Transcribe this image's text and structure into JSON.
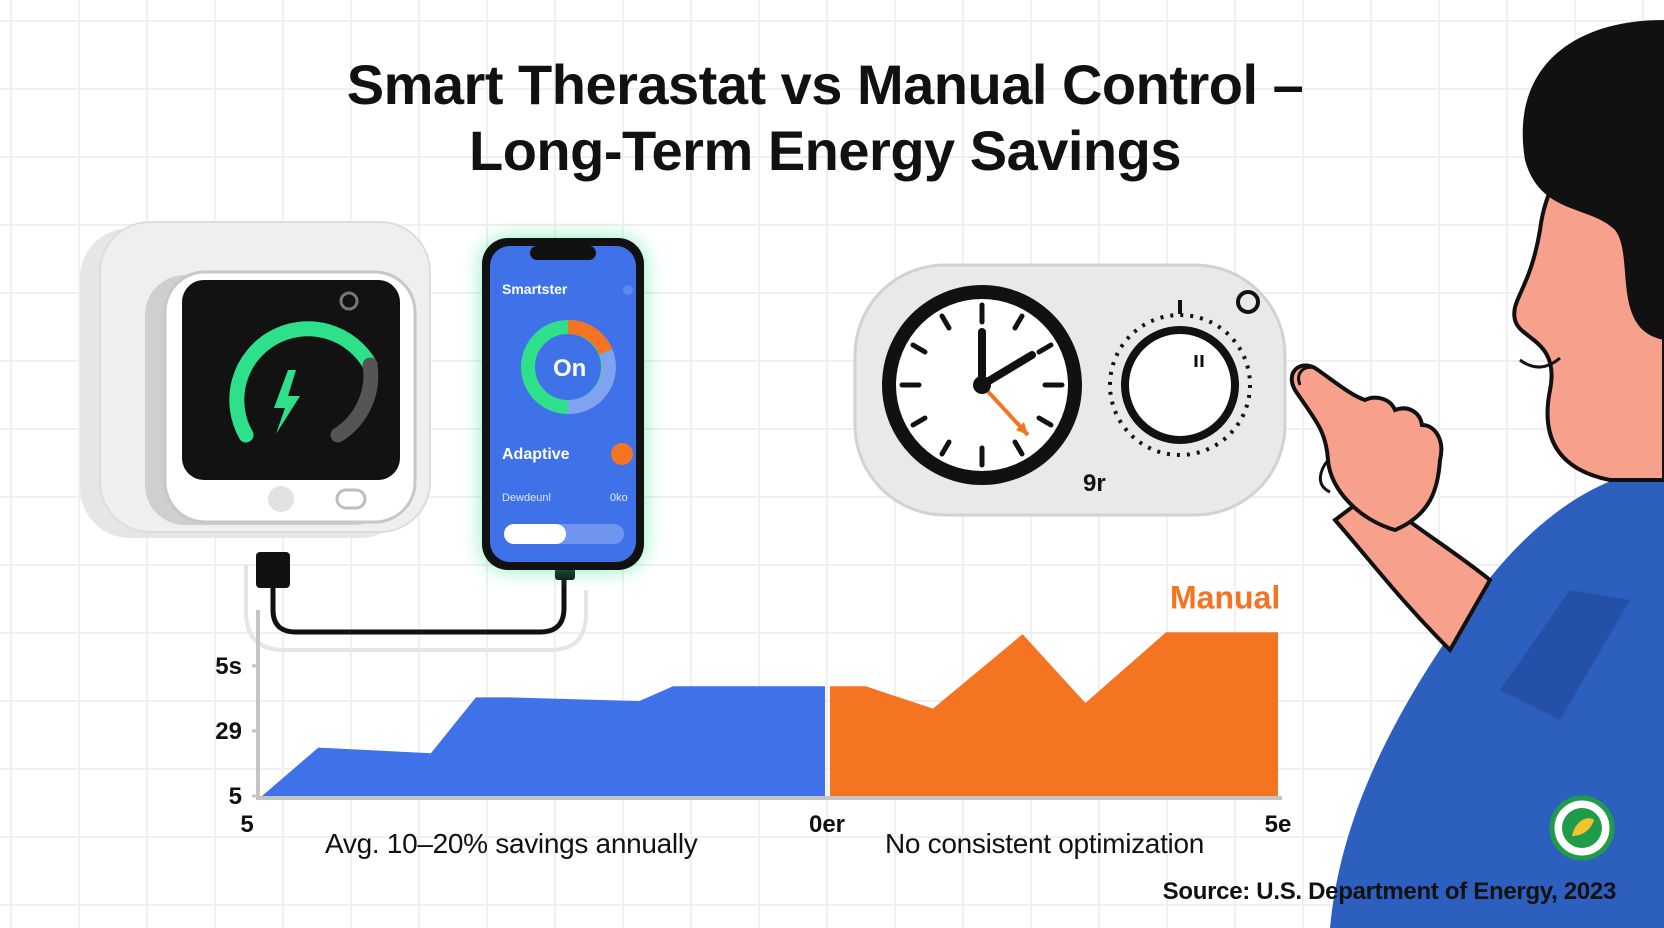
{
  "title": {
    "line1": "Smart Therastat vs Manual Control –",
    "line2": "Long-Term Energy Savings"
  },
  "smart_device": {
    "phone_app_name": "Smartster",
    "phone_status": "On",
    "phone_mode_label": "Adaptive",
    "phone_row_label": "Dewdeunl",
    "phone_row_value": "0ko"
  },
  "manual_device": {
    "dial_label": "9r"
  },
  "chart_data": {
    "type": "area",
    "title": "",
    "xlabel": "",
    "ylabel": "",
    "y_tick_labels": [
      "5",
      "29",
      "5s"
    ],
    "x_tick_labels": [
      "5",
      "0er",
      "5e"
    ],
    "ylim": [
      0,
      100
    ],
    "series": [
      {
        "name": "",
        "color": "#3f72e8",
        "x": [
          0,
          10,
          30,
          38,
          44,
          67,
          73,
          100
        ],
        "y": [
          0,
          26,
          23,
          53,
          53,
          51,
          59,
          59
        ]
      },
      {
        "name": "Manual",
        "color": "#f47421",
        "x": [
          0,
          8,
          23,
          43,
          57,
          75,
          100
        ],
        "y": [
          59,
          59,
          47,
          87,
          50,
          88,
          88
        ]
      }
    ],
    "annotations": [
      "Avg. 10–20% savings annually",
      "No consistent optimization"
    ]
  },
  "source": "Source: U.S. Department of Energy, 2023",
  "colors": {
    "smart_blue": "#3f72e8",
    "manual_orange": "#f47421",
    "glow_green": "#2ee08a",
    "skin": "#f7a08c",
    "shirt": "#2d5fbe"
  },
  "icons": [
    "lightning-icon",
    "clock-icon",
    "dial-knob-icon",
    "leaf-badge-icon"
  ]
}
